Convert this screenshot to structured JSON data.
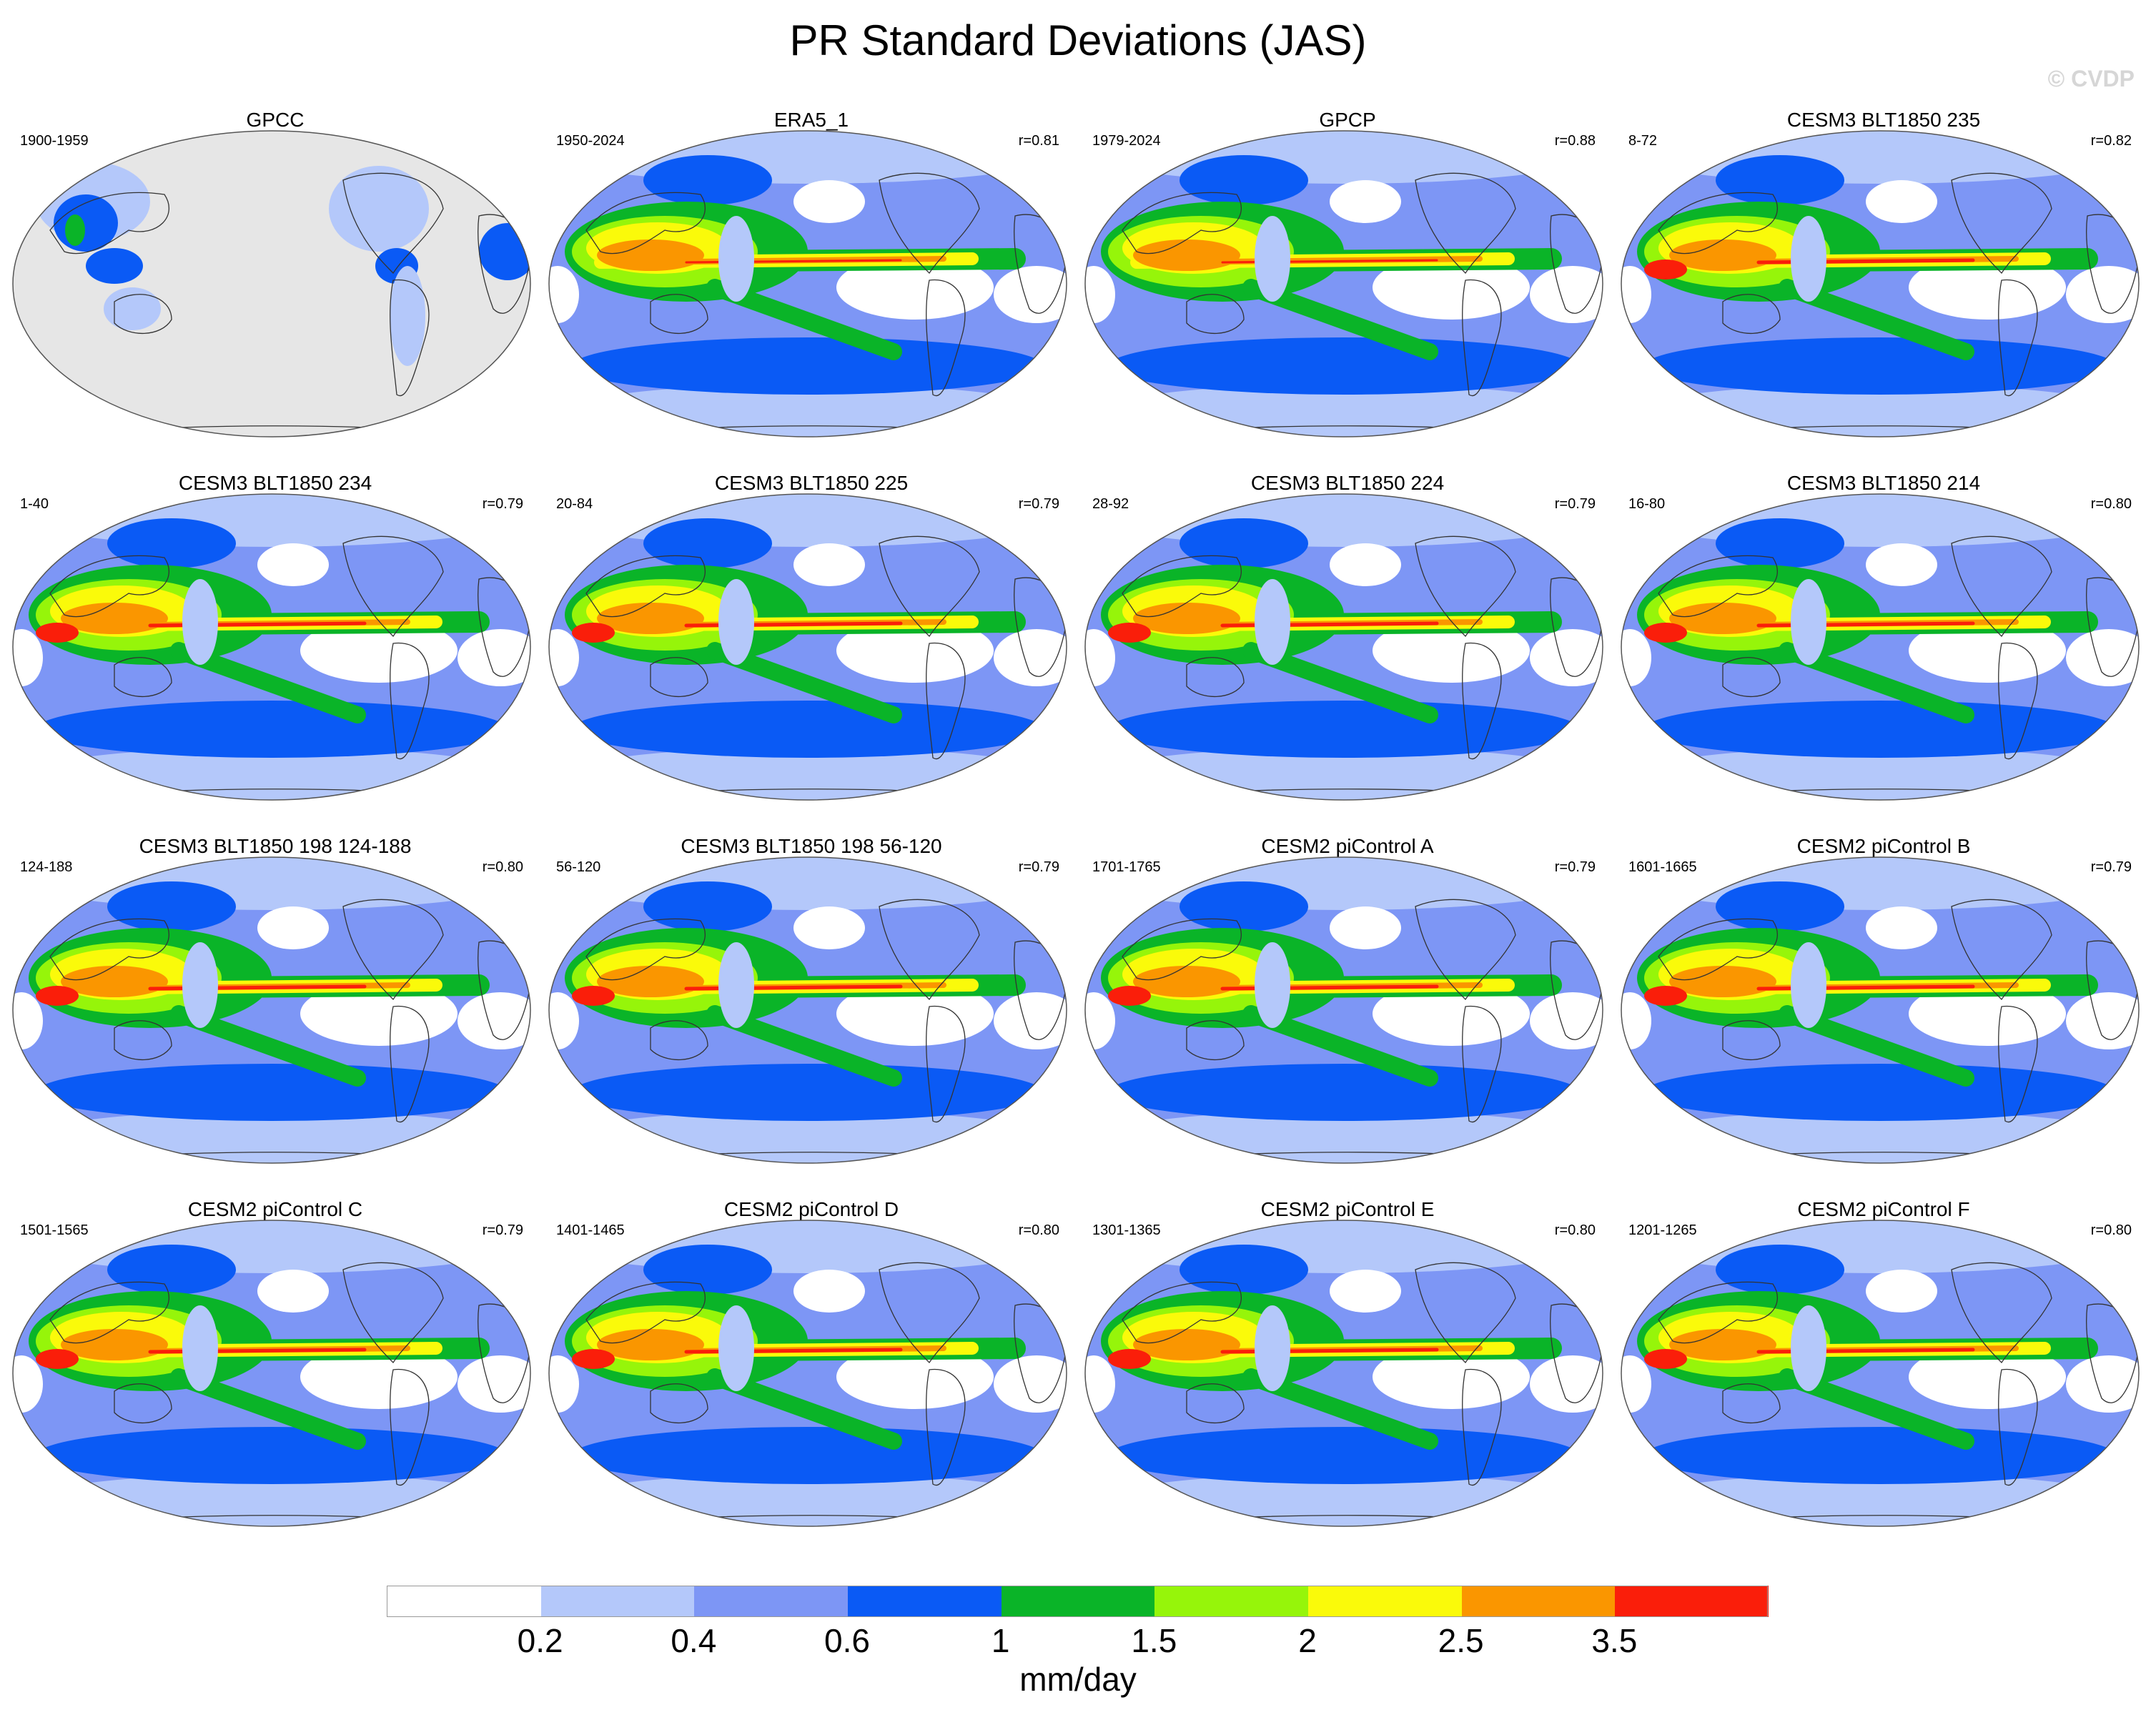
{
  "title": "PR Standard Deviations (JAS)",
  "watermark": "© CVDP",
  "panels": [
    {
      "title": "GPCC",
      "years": "1900-1959",
      "corr": "",
      "variant": "obs-land"
    },
    {
      "title": "ERA5_1",
      "years": "1950-2024",
      "corr": "r=0.81",
      "variant": "obs"
    },
    {
      "title": "GPCP",
      "years": "1979-2024",
      "corr": "r=0.88",
      "variant": "obs"
    },
    {
      "title": "CESM3 BLT1850 235",
      "years": "8-72",
      "corr": "r=0.82",
      "variant": "model"
    },
    {
      "title": "CESM3 BLT1850 234",
      "years": "1-40",
      "corr": "r=0.79",
      "variant": "model"
    },
    {
      "title": "CESM3 BLT1850 225",
      "years": "20-84",
      "corr": "r=0.79",
      "variant": "model"
    },
    {
      "title": "CESM3 BLT1850 224",
      "years": "28-92",
      "corr": "r=0.79",
      "variant": "model"
    },
    {
      "title": "CESM3 BLT1850 214",
      "years": "16-80",
      "corr": "r=0.80",
      "variant": "model"
    },
    {
      "title": "CESM3 BLT1850 198 124-188",
      "years": "124-188",
      "corr": "r=0.80",
      "variant": "model"
    },
    {
      "title": "CESM3 BLT1850 198 56-120",
      "years": "56-120",
      "corr": "r=0.79",
      "variant": "model"
    },
    {
      "title": "CESM2 piControl A",
      "years": "1701-1765",
      "corr": "r=0.79",
      "variant": "model"
    },
    {
      "title": "CESM2 piControl B",
      "years": "1601-1665",
      "corr": "r=0.79",
      "variant": "model"
    },
    {
      "title": "CESM2 piControl C",
      "years": "1501-1565",
      "corr": "r=0.79",
      "variant": "model"
    },
    {
      "title": "CESM2 piControl D",
      "years": "1401-1465",
      "corr": "r=0.80",
      "variant": "model"
    },
    {
      "title": "CESM2 piControl E",
      "years": "1301-1365",
      "corr": "r=0.80",
      "variant": "model"
    },
    {
      "title": "CESM2 piControl F",
      "years": "1201-1265",
      "corr": "r=0.80",
      "variant": "model"
    }
  ],
  "colorbar": {
    "units": "mm/day",
    "colors": [
      "#ffffff",
      "#b4c8fa",
      "#7d96f5",
      "#0a5af5",
      "#0ab428",
      "#96f50a",
      "#fafa0a",
      "#fa9600",
      "#fa1e0a"
    ],
    "tick_labels": [
      "0.2",
      "0.4",
      "0.6",
      "1",
      "1.5",
      "2",
      "2.5",
      "3.5"
    ]
  }
}
